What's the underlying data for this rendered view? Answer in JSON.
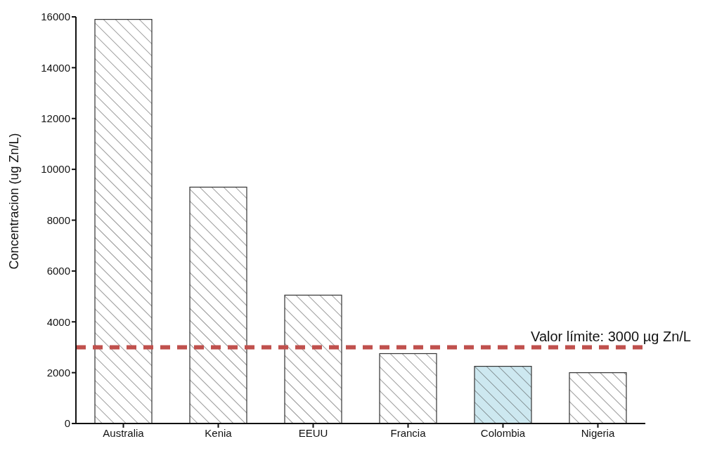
{
  "chart_data": {
    "type": "bar",
    "ylabel": "Concentracion (ug Zn/L)",
    "categories": [
      "Australia",
      "Kenia",
      "EEUU",
      "Francia",
      "Colombia",
      "Nigeria"
    ],
    "values": [
      15900,
      9300,
      5050,
      2750,
      2250,
      2000
    ],
    "colors": [
      "#ffffff",
      "#ffffff",
      "#ffffff",
      "#ffffff",
      "#cde8f0",
      "#ffffff"
    ],
    "ylim": [
      0,
      16000
    ],
    "yticks": [
      0,
      2000,
      4000,
      6000,
      8000,
      10000,
      12000,
      14000,
      16000
    ],
    "grid": false,
    "legend": false,
    "ref_lines": [
      {
        "axis": "y",
        "value": 3000,
        "label": "Valor límite: 3000 µg Zn/L",
        "color": "#c0504d",
        "line_style": "dashed"
      }
    ]
  }
}
